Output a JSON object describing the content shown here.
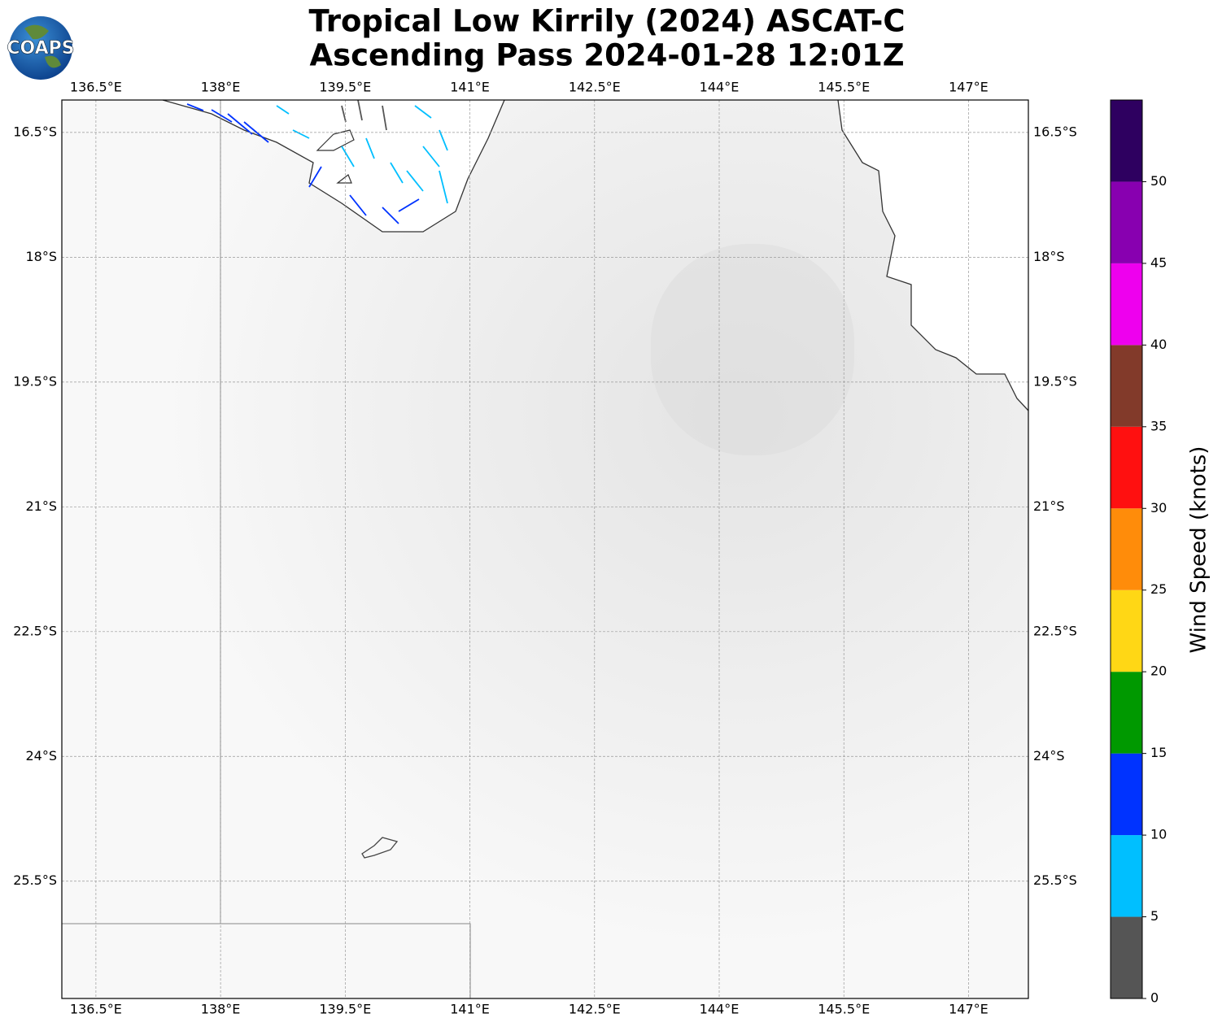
{
  "chart_data": {
    "type": "map",
    "title": "Tropical Low Kirrily (2024) ASCAT-C",
    "subtitle": "Ascending Pass 2024-01-28 12:01Z",
    "logo_text": "COAPS",
    "xlim": [
      136.09,
      147.72
    ],
    "ylim": [
      -16.11,
      -26.91
    ],
    "xticks": [
      {
        "value": 136.5,
        "label": "136.5°E"
      },
      {
        "value": 138,
        "label": "138°E"
      },
      {
        "value": 139.5,
        "label": "139.5°E"
      },
      {
        "value": 141,
        "label": "141°E"
      },
      {
        "value": 142.5,
        "label": "142.5°E"
      },
      {
        "value": 144,
        "label": "144°E"
      },
      {
        "value": 145.5,
        "label": "145.5°E"
      },
      {
        "value": 147,
        "label": "147°E"
      }
    ],
    "yticks": [
      {
        "value": -16.5,
        "label": "16.5°S"
      },
      {
        "value": -18,
        "label": "18°S"
      },
      {
        "value": -19.5,
        "label": "19.5°S"
      },
      {
        "value": -21,
        "label": "21°S"
      },
      {
        "value": -22.5,
        "label": "22.5°S"
      },
      {
        "value": -24,
        "label": "24°S"
      },
      {
        "value": -25.5,
        "label": "25.5°S"
      }
    ],
    "grid": true,
    "colorbar": {
      "label": "Wind Speed (knots)",
      "bins": [
        0,
        5,
        10,
        15,
        20,
        25,
        30,
        35,
        40,
        45,
        50,
        55
      ],
      "colors": [
        "#555555",
        "#00bfff",
        "#0033ff",
        "#009900",
        "#ffd715",
        "#ff8c0a",
        "#ff1010",
        "#823a2a",
        "#ee00ee",
        "#8800b0",
        "#2e0060"
      ],
      "ticks": [
        0,
        5,
        10,
        15,
        20,
        25,
        30,
        35,
        40,
        45,
        50
      ]
    }
  }
}
